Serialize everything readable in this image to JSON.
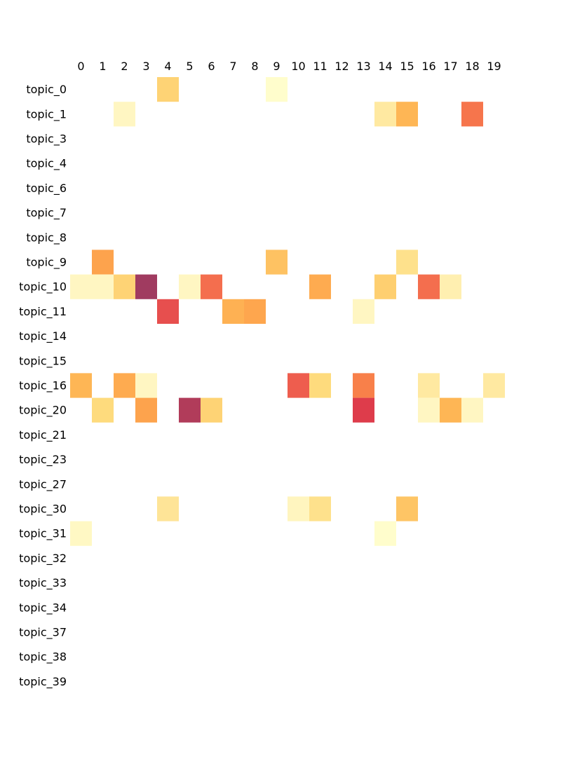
{
  "chart_data": {
    "type": "heatmap",
    "title": "",
    "xlabel": "",
    "ylabel": "",
    "x_ticks": [
      "0",
      "1",
      "2",
      "3",
      "4",
      "5",
      "6",
      "7",
      "8",
      "9",
      "10",
      "11",
      "12",
      "13",
      "14",
      "15",
      "16",
      "17",
      "18",
      "19"
    ],
    "y_ticks": [
      "topic_0",
      "topic_1",
      "topic_3",
      "topic_4",
      "topic_6",
      "topic_7",
      "topic_8",
      "topic_9",
      "topic_10",
      "topic_11",
      "topic_14",
      "topic_15",
      "topic_16",
      "topic_20",
      "topic_21",
      "topic_23",
      "topic_27",
      "topic_30",
      "topic_31",
      "topic_32",
      "topic_33",
      "topic_34",
      "topic_37",
      "topic_38",
      "topic_39"
    ],
    "x_axis_position": "top",
    "colormap": "YlOrRd",
    "colors": {
      "low": "#ffffcc",
      "mid": "#feb24c",
      "high": "#9b3057",
      "empty": "#ffffff"
    },
    "value_range": [
      0,
      1
    ],
    "grid": false,
    "legend": "none",
    "cells": [
      {
        "row": "topic_0",
        "col": "4",
        "value": 0.28
      },
      {
        "row": "topic_0",
        "col": "9",
        "value": 0.02
      },
      {
        "row": "topic_1",
        "col": "2",
        "value": 0.1
      },
      {
        "row": "topic_1",
        "col": "14",
        "value": 0.18
      },
      {
        "row": "topic_1",
        "col": "15",
        "value": 0.4
      },
      {
        "row": "topic_1",
        "col": "18",
        "value": 0.63
      },
      {
        "row": "topic_9",
        "col": "1",
        "value": 0.48
      },
      {
        "row": "topic_9",
        "col": "9",
        "value": 0.35
      },
      {
        "row": "topic_9",
        "col": "15",
        "value": 0.22
      },
      {
        "row": "topic_10",
        "col": "0",
        "value": 0.1
      },
      {
        "row": "topic_10",
        "col": "1",
        "value": 0.1
      },
      {
        "row": "topic_10",
        "col": "2",
        "value": 0.28
      },
      {
        "row": "topic_10",
        "col": "3",
        "value": 1.0
      },
      {
        "row": "topic_10",
        "col": "5",
        "value": 0.1
      },
      {
        "row": "topic_10",
        "col": "6",
        "value": 0.65
      },
      {
        "row": "topic_10",
        "col": "11",
        "value": 0.45
      },
      {
        "row": "topic_10",
        "col": "14",
        "value": 0.3
      },
      {
        "row": "topic_10",
        "col": "16",
        "value": 0.65
      },
      {
        "row": "topic_10",
        "col": "17",
        "value": 0.15
      },
      {
        "row": "topic_11",
        "col": "4",
        "value": 0.75
      },
      {
        "row": "topic_11",
        "col": "7",
        "value": 0.42
      },
      {
        "row": "topic_11",
        "col": "8",
        "value": 0.47
      },
      {
        "row": "topic_11",
        "col": "13",
        "value": 0.1
      },
      {
        "row": "topic_16",
        "col": "0",
        "value": 0.4
      },
      {
        "row": "topic_16",
        "col": "2",
        "value": 0.45
      },
      {
        "row": "topic_16",
        "col": "3",
        "value": 0.1
      },
      {
        "row": "topic_16",
        "col": "10",
        "value": 0.7
      },
      {
        "row": "topic_16",
        "col": "11",
        "value": 0.25
      },
      {
        "row": "topic_16",
        "col": "13",
        "value": 0.6
      },
      {
        "row": "topic_16",
        "col": "16",
        "value": 0.18
      },
      {
        "row": "topic_16",
        "col": "19",
        "value": 0.18
      },
      {
        "row": "topic_20",
        "col": "1",
        "value": 0.25
      },
      {
        "row": "topic_20",
        "col": "3",
        "value": 0.48
      },
      {
        "row": "topic_20",
        "col": "5",
        "value": 0.95
      },
      {
        "row": "topic_20",
        "col": "6",
        "value": 0.28
      },
      {
        "row": "topic_20",
        "col": "13",
        "value": 0.82
      },
      {
        "row": "topic_20",
        "col": "16",
        "value": 0.1
      },
      {
        "row": "topic_20",
        "col": "17",
        "value": 0.4
      },
      {
        "row": "topic_20",
        "col": "18",
        "value": 0.1
      },
      {
        "row": "topic_30",
        "col": "4",
        "value": 0.2
      },
      {
        "row": "topic_30",
        "col": "10",
        "value": 0.12
      },
      {
        "row": "topic_30",
        "col": "11",
        "value": 0.22
      },
      {
        "row": "topic_30",
        "col": "15",
        "value": 0.34
      },
      {
        "row": "topic_31",
        "col": "0",
        "value": 0.08
      },
      {
        "row": "topic_31",
        "col": "14",
        "value": 0.02
      }
    ]
  }
}
